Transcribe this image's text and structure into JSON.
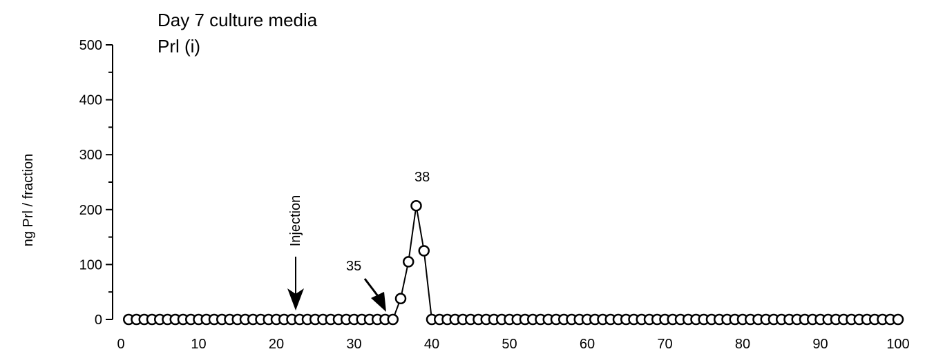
{
  "chart_data": {
    "type": "line",
    "title": "Day 7 culture media",
    "subtitle": "Prl (i)",
    "xlabel": "",
    "ylabel": "ng Prl / fraction",
    "xlim": [
      0,
      100
    ],
    "ylim": [
      0,
      500
    ],
    "x_ticks": [
      0,
      10,
      20,
      30,
      40,
      50,
      60,
      70,
      80,
      90,
      100
    ],
    "y_ticks": [
      0,
      100,
      200,
      300,
      400,
      500
    ],
    "grid": false,
    "legend": "none",
    "series": [
      {
        "x": [
          1,
          2,
          3,
          4,
          5,
          6,
          7,
          8,
          9,
          10,
          11,
          12,
          13,
          14,
          15,
          16,
          17,
          18,
          19,
          20,
          21,
          22,
          23,
          24,
          25,
          26,
          27,
          28,
          29,
          30,
          31,
          32,
          33,
          34,
          35,
          36,
          37,
          38,
          39,
          40,
          41,
          42,
          43,
          44,
          45,
          46,
          47,
          48,
          49,
          50,
          51,
          52,
          53,
          54,
          55,
          56,
          57,
          58,
          59,
          60,
          61,
          62,
          63,
          64,
          65,
          66,
          67,
          68,
          69,
          70,
          71,
          72,
          73,
          74,
          75,
          76,
          77,
          78,
          79,
          80,
          81,
          82,
          83,
          84,
          85,
          86,
          87,
          88,
          89,
          90,
          91,
          92,
          93,
          94,
          95,
          96,
          97,
          98,
          99,
          100
        ],
        "values": [
          0,
          0,
          0,
          0,
          0,
          0,
          0,
          0,
          0,
          0,
          0,
          0,
          0,
          0,
          0,
          0,
          0,
          0,
          0,
          0,
          0,
          0,
          0,
          0,
          0,
          0,
          0,
          0,
          0,
          0,
          0,
          0,
          0,
          0,
          0,
          38,
          105,
          207,
          125,
          0,
          0,
          0,
          0,
          0,
          0,
          0,
          0,
          0,
          0,
          0,
          0,
          0,
          0,
          0,
          0,
          0,
          0,
          0,
          0,
          0,
          0,
          0,
          0,
          0,
          0,
          0,
          0,
          0,
          0,
          0,
          0,
          0,
          0,
          0,
          0,
          0,
          0,
          0,
          0,
          0,
          0,
          0,
          0,
          0,
          0,
          0,
          0,
          0,
          0,
          0,
          0,
          0,
          0,
          0,
          0,
          0,
          0,
          0,
          0,
          0
        ]
      }
    ],
    "annotations": [
      {
        "text": "Injection",
        "x": 23,
        "arrow": "down"
      },
      {
        "text": "35",
        "x": 35,
        "arrow": "down-right"
      },
      {
        "text": "38",
        "x": 38
      }
    ]
  }
}
